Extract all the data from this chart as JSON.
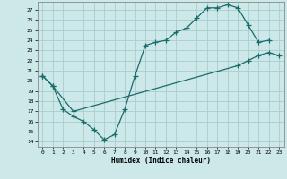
{
  "xlabel": "Humidex (Indice chaleur)",
  "ylabel": "",
  "bg_color": "#cce8e8",
  "grid_color": "#aacccc",
  "line_color": "#1a6b6b",
  "xlim": [
    -0.5,
    23.5
  ],
  "ylim": [
    13.5,
    27.8
  ],
  "xticks": [
    0,
    1,
    2,
    3,
    4,
    5,
    6,
    7,
    8,
    9,
    10,
    11,
    12,
    13,
    14,
    15,
    16,
    17,
    18,
    19,
    20,
    21,
    22,
    23
  ],
  "yticks": [
    14,
    15,
    16,
    17,
    18,
    19,
    20,
    21,
    22,
    23,
    24,
    25,
    26,
    27
  ],
  "line1_x": [
    0,
    1,
    2,
    3,
    4,
    5,
    6,
    7,
    8,
    9,
    10,
    11,
    12,
    13,
    14,
    15,
    16,
    17,
    18,
    19,
    20,
    21,
    22
  ],
  "line1_y": [
    20.5,
    19.5,
    17.2,
    16.5,
    16.0,
    15.2,
    14.2,
    14.7,
    17.2,
    20.5,
    23.5,
    23.8,
    24.0,
    24.8,
    25.2,
    26.2,
    27.2,
    27.2,
    27.5,
    27.2,
    25.5,
    23.8,
    24.0
  ],
  "line2_x": [
    0,
    1,
    3,
    19,
    20,
    21,
    22,
    23
  ],
  "line2_y": [
    20.5,
    19.5,
    17.0,
    21.5,
    22.0,
    22.5,
    22.8,
    22.5
  ]
}
